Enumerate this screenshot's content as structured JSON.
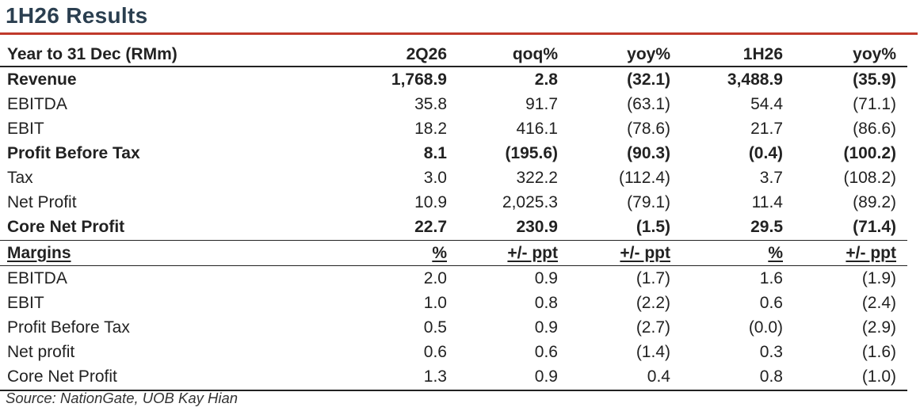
{
  "title": "1H26 Results",
  "headers": [
    "Year to 31 Dec (RMm)",
    "2Q26",
    "qoq%",
    "yoy%",
    "1H26",
    "yoy%"
  ],
  "rows": [
    {
      "label": "Revenue",
      "bold": true,
      "values": [
        "1,768.9",
        "2.8",
        "(32.1)",
        "3,488.9",
        "(35.9)"
      ]
    },
    {
      "label": "EBITDA",
      "bold": false,
      "values": [
        "35.8",
        "91.7",
        "(63.1)",
        "54.4",
        "(71.1)"
      ]
    },
    {
      "label": "EBIT",
      "bold": false,
      "values": [
        "18.2",
        "416.1",
        "(78.6)",
        "21.7",
        "(86.6)"
      ]
    },
    {
      "label": "Profit Before Tax",
      "bold": true,
      "values": [
        "8.1",
        "(195.6)",
        "(90.3)",
        "(0.4)",
        "(100.2)"
      ]
    },
    {
      "label": "Tax",
      "bold": false,
      "values": [
        "3.0",
        "322.2",
        "(112.4)",
        "3.7",
        "(108.2)"
      ]
    },
    {
      "label": "Net Profit",
      "bold": false,
      "values": [
        "10.9",
        "2,025.3",
        "(79.1)",
        "11.4",
        "(89.2)"
      ]
    },
    {
      "label": "Core Net Profit",
      "bold": true,
      "values": [
        "22.7",
        "230.9",
        "(1.5)",
        "29.5",
        "(71.4)"
      ]
    }
  ],
  "margins_header": [
    "Margins",
    "%",
    "+/- ppt",
    "+/- ppt",
    "%",
    "+/- ppt"
  ],
  "margin_rows": [
    {
      "label": "EBITDA",
      "values": [
        "2.0",
        "0.9",
        "(1.7)",
        "1.6",
        "(1.9)"
      ]
    },
    {
      "label": "EBIT",
      "values": [
        "1.0",
        "0.8",
        "(2.2)",
        "0.6",
        "(2.4)"
      ]
    },
    {
      "label": "Profit Before Tax",
      "values": [
        "0.5",
        "0.9",
        "(2.7)",
        "(0.0)",
        "(2.9)"
      ]
    },
    {
      "label": "Net profit",
      "values": [
        "0.6",
        "0.6",
        "(1.4)",
        "0.3",
        "(1.6)"
      ]
    },
    {
      "label": "Core Net Profit",
      "values": [
        "1.3",
        "0.9",
        "0.4",
        "0.8",
        "(1.0)"
      ]
    }
  ],
  "source": "Source: NationGate, UOB Kay Hian",
  "colors": {
    "accent_rule": "#c0392b",
    "title": "#2b3f50"
  }
}
